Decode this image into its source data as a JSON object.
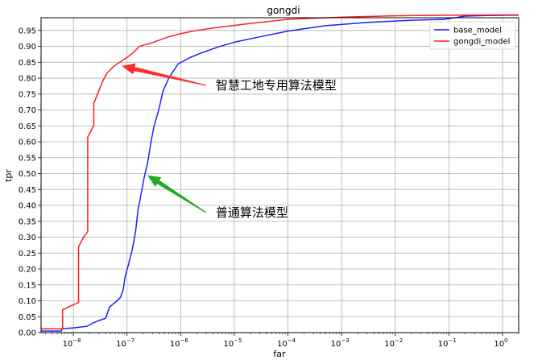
{
  "chart_data": {
    "type": "line",
    "title": "gongdi",
    "xlabel": "far",
    "ylabel": "tpr",
    "xscale": "log",
    "xlim": [
      2.5e-09,
      2
    ],
    "ylim": [
      0,
      0.99
    ],
    "grid": true,
    "legend_position": "top-right",
    "x_ticks": [
      {
        "value": 1e-08,
        "base": "10",
        "exp": "−8"
      },
      {
        "value": 1e-07,
        "base": "10",
        "exp": "−7"
      },
      {
        "value": 1e-06,
        "base": "10",
        "exp": "−6"
      },
      {
        "value": 1e-05,
        "base": "10",
        "exp": "−5"
      },
      {
        "value": 0.0001,
        "base": "10",
        "exp": "−4"
      },
      {
        "value": 0.001,
        "base": "10",
        "exp": "−3"
      },
      {
        "value": 0.01,
        "base": "10",
        "exp": "−2"
      },
      {
        "value": 0.1,
        "base": "10",
        "exp": "−1"
      },
      {
        "value": 1,
        "base": "10",
        "exp": "0"
      }
    ],
    "y_ticks": [
      "0.00",
      "0.05",
      "0.10",
      "0.15",
      "0.20",
      "0.25",
      "0.30",
      "0.35",
      "0.40",
      "0.45",
      "0.50",
      "0.55",
      "0.60",
      "0.65",
      "0.70",
      "0.75",
      "0.80",
      "0.85",
      "0.90",
      "0.95"
    ],
    "series": [
      {
        "name": "base_model",
        "color": "#1f1fff",
        "points": [
          [
            2.5e-09,
            0.005
          ],
          [
            6e-09,
            0.005
          ],
          [
            6.1e-09,
            0.012
          ],
          [
            1e-08,
            0.015
          ],
          [
            1.8e-08,
            0.02
          ],
          [
            2.3e-08,
            0.03
          ],
          [
            3e-08,
            0.038
          ],
          [
            4e-08,
            0.045
          ],
          [
            4.7e-08,
            0.08
          ],
          [
            6e-08,
            0.095
          ],
          [
            7.5e-08,
            0.11
          ],
          [
            8.5e-08,
            0.135
          ],
          [
            9.2e-08,
            0.175
          ],
          [
            1.05e-07,
            0.21
          ],
          [
            1.25e-07,
            0.26
          ],
          [
            1.45e-07,
            0.32
          ],
          [
            1.6e-07,
            0.385
          ],
          [
            1.9e-07,
            0.45
          ],
          [
            2.1e-07,
            0.49
          ],
          [
            2.4e-07,
            0.53
          ],
          [
            2.8e-07,
            0.6
          ],
          [
            3.2e-07,
            0.65
          ],
          [
            3.9e-07,
            0.7
          ],
          [
            4.7e-07,
            0.76
          ],
          [
            6e-07,
            0.8
          ],
          [
            9e-07,
            0.845
          ],
          [
            1.5e-06,
            0.865
          ],
          [
            2.5e-06,
            0.88
          ],
          [
            5e-06,
            0.898
          ],
          [
            1e-05,
            0.913
          ],
          [
            3e-05,
            0.93
          ],
          [
            0.0001,
            0.948
          ],
          [
            0.0005,
            0.965
          ],
          [
            0.003,
            0.975
          ],
          [
            0.02,
            0.982
          ],
          [
            0.08,
            0.985
          ],
          [
            0.13,
            0.99
          ],
          [
            0.2,
            0.995
          ],
          [
            0.5,
            0.997
          ],
          [
            2,
            0.998
          ]
        ]
      },
      {
        "name": "gongdi_model",
        "color": "#ff1f1f",
        "points": [
          [
            2.5e-09,
            0.012
          ],
          [
            6.3e-09,
            0.012
          ],
          [
            6.3e-09,
            0.072
          ],
          [
            1.25e-08,
            0.095
          ],
          [
            1.25e-08,
            0.27
          ],
          [
            1.55e-08,
            0.3
          ],
          [
            1.85e-08,
            0.318
          ],
          [
            1.85e-08,
            0.615
          ],
          [
            2.1e-08,
            0.632
          ],
          [
            2.4e-08,
            0.652
          ],
          [
            2.4e-08,
            0.72
          ],
          [
            2.9e-08,
            0.755
          ],
          [
            3.4e-08,
            0.785
          ],
          [
            4.2e-08,
            0.815
          ],
          [
            5.5e-08,
            0.835
          ],
          [
            7e-08,
            0.848
          ],
          [
            1e-07,
            0.865
          ],
          [
            1.3e-07,
            0.88
          ],
          [
            1.7e-07,
            0.9
          ],
          [
            3e-07,
            0.912
          ],
          [
            6e-07,
            0.93
          ],
          [
            1e-06,
            0.94
          ],
          [
            2e-06,
            0.95
          ],
          [
            5e-06,
            0.96
          ],
          [
            2e-05,
            0.972
          ],
          [
            0.0001,
            0.985
          ],
          [
            0.001,
            0.992
          ],
          [
            0.01,
            0.996
          ],
          [
            0.1,
            0.998
          ],
          [
            2,
            0.999
          ]
        ]
      }
    ],
    "annotations": [
      {
        "text": "智慧工地专用算法模型",
        "target": [
          8e-08,
          0.838
        ],
        "color": "#ff2a2a",
        "text_anchor": [
          4.5e-06,
          0.78
        ]
      },
      {
        "text": "普通算法模型",
        "target": [
          2.4e-07,
          0.495
        ],
        "color": "#22aa22",
        "text_anchor": [
          4.5e-06,
          0.38
        ]
      }
    ]
  }
}
